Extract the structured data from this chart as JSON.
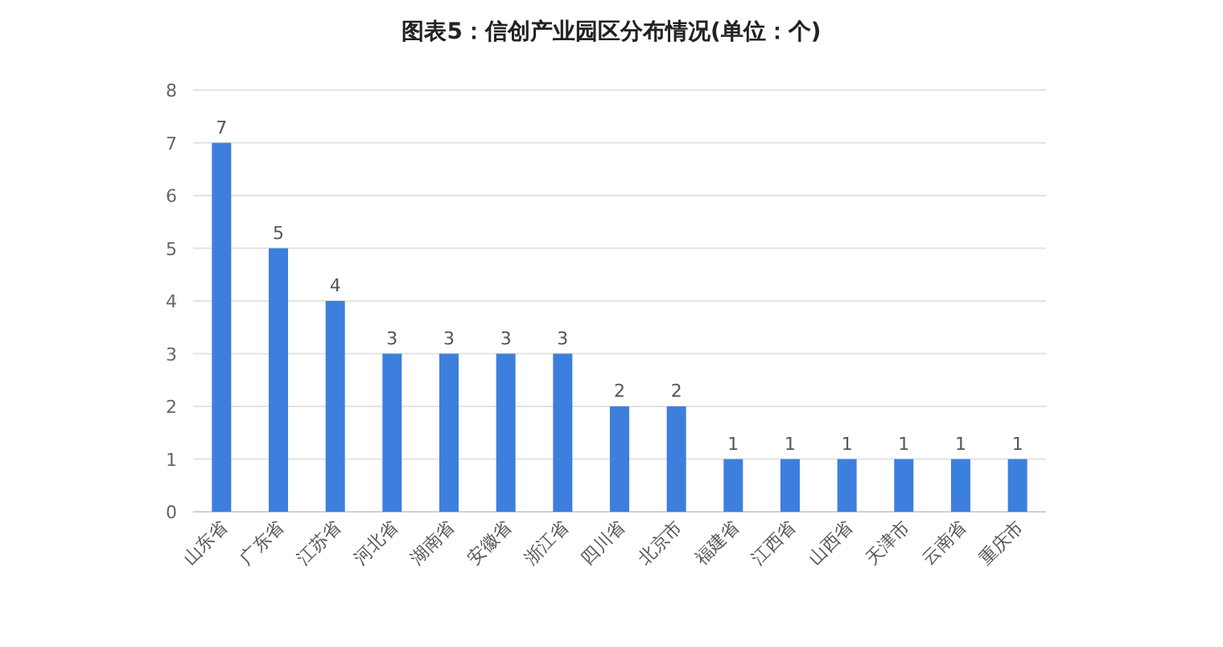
{
  "chart_data": {
    "type": "bar",
    "title": "图表5：信创产业园区分布情况(单位：个)",
    "categories": [
      "山东省",
      "广东省",
      "江苏省",
      "河北省",
      "湖南省",
      "安徽省",
      "浙江省",
      "四川省",
      "北京市",
      "福建省",
      "江西省",
      "山西省",
      "天津市",
      "云南省",
      "重庆市"
    ],
    "values": [
      7,
      5,
      4,
      3,
      3,
      3,
      3,
      2,
      2,
      1,
      1,
      1,
      1,
      1,
      1
    ],
    "color": "#3d7fdc",
    "ylim": [
      0,
      8
    ],
    "yticks": [
      0,
      1,
      2,
      3,
      4,
      5,
      6,
      7,
      8
    ],
    "grid": "y",
    "data_labels": true
  }
}
